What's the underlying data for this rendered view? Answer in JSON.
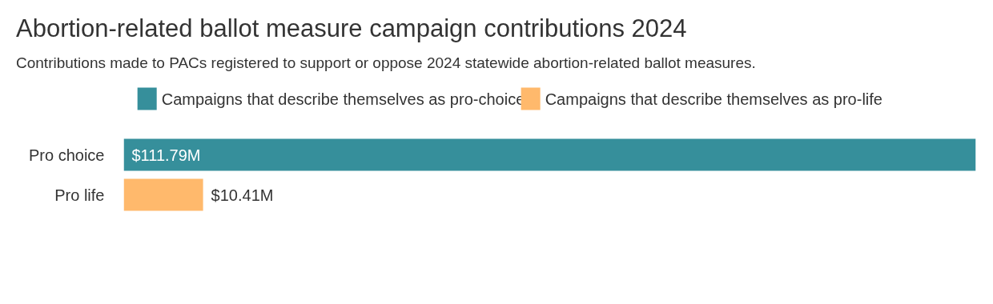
{
  "chart_data": {
    "type": "bar",
    "orientation": "horizontal",
    "stacked": true,
    "title": "Abortion-related ballot measure campaign contributions 2024",
    "subtitle": "Contributions made to PACs registered to support or oppose 2024 statewide abortion-related ballot measures.",
    "categories": [
      "Pro choice",
      "Pro life"
    ],
    "series": [
      {
        "name": "Campaigns that describe themselves as pro-choice",
        "color": "#368f9b",
        "values": [
          111.79,
          null
        ],
        "value_labels": [
          "$111.79M",
          null
        ]
      },
      {
        "name": "Campaigns that describe themselves as pro-life",
        "color": "#ffb96c",
        "values": [
          null,
          10.41
        ],
        "value_labels": [
          null,
          "$10.41M"
        ]
      }
    ],
    "legend": "top left",
    "grid": false
  }
}
